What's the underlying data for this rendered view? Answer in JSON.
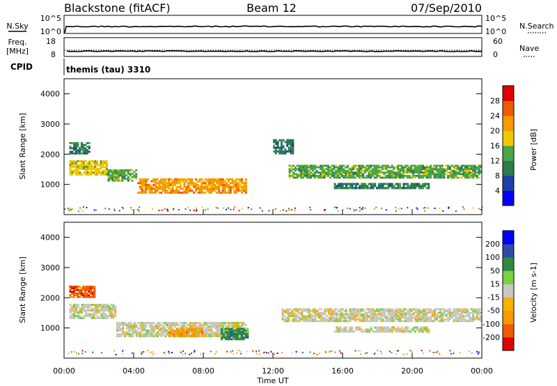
{
  "header": {
    "title_left": "Blackstone (fitACF)",
    "title_center": "Beam 12",
    "title_right": "07/Sep/2010"
  },
  "top_panels": {
    "nsky_label": "N.Sky",
    "nsky_ticks": [
      "10^5",
      "10^0"
    ],
    "nsearch_label": "N.Search",
    "nsearch_ticks": [
      "10^5",
      "10^0"
    ],
    "freq_label_1": "Freq.",
    "freq_label_2": "[MHz]",
    "freq_ticks": [
      "18",
      "8"
    ],
    "nave_label": "Nave",
    "nave_ticks": [
      "60",
      "0"
    ],
    "cpid_label": "CPID",
    "cpid_value": "themis (tau) 3310"
  },
  "colors": {
    "power_scale": [
      "#0000ff",
      "#1f3fa8",
      "#2f7a4f",
      "#49a548",
      "#f0c800",
      "#f59a00",
      "#f05a00",
      "#e00000"
    ],
    "velocity_scale": [
      "#e00000",
      "#f05a00",
      "#f59a00",
      "#f5b000",
      "#c8c8c0",
      "#7ad040",
      "#2f8a3f",
      "#2f4aa8",
      "#0000ff"
    ]
  },
  "chart_data": [
    {
      "type": "heatmap",
      "ylabel": "Slant Range [km]",
      "xlabel": "Time UT",
      "x_ticks": [
        "00:00",
        "04:00",
        "08:00",
        "12:00",
        "16:00",
        "20:00",
        "00:00"
      ],
      "y_ticks": [
        "1000",
        "2000",
        "3000",
        "4000"
      ],
      "ylim": [
        0,
        4500
      ],
      "colorbar_label": "Power [dB]",
      "colorbar_ticks": [
        "4",
        "8",
        "12",
        "16",
        "20",
        "24",
        "28"
      ],
      "bands": [
        {
          "t0": 0.3,
          "t1": 2.5,
          "r0": 1300,
          "r1": 1800,
          "level": 4
        },
        {
          "t0": 2.5,
          "t1": 4.2,
          "r0": 1100,
          "r1": 1500,
          "level": 3
        },
        {
          "t0": 4.2,
          "t1": 10.5,
          "r0": 700,
          "r1": 1200,
          "level": 5
        },
        {
          "t0": 12.9,
          "t1": 24.0,
          "r0": 1200,
          "r1": 1650,
          "level": 3
        },
        {
          "t0": 15.5,
          "t1": 21.0,
          "r0": 850,
          "r1": 1050,
          "level": 2
        },
        {
          "t0": 0.3,
          "t1": 1.5,
          "r0": 2000,
          "r1": 2400,
          "level": 2
        },
        {
          "t0": 12.0,
          "t1": 13.2,
          "r0": 2000,
          "r1": 2500,
          "level": 2
        }
      ]
    },
    {
      "type": "heatmap",
      "ylabel": "Slant Range [km]",
      "xlabel": "Time UT",
      "x_ticks": [
        "00:00",
        "04:00",
        "08:00",
        "12:00",
        "16:00",
        "20:00",
        "00:00"
      ],
      "y_ticks": [
        "1000",
        "2000",
        "3000",
        "4000"
      ],
      "ylim": [
        0,
        4500
      ],
      "colorbar_label": "Velocity [m s-1]",
      "colorbar_ticks": [
        "200",
        "100",
        "50",
        "15",
        "-15",
        "-50",
        "-100",
        "-200"
      ],
      "bands": [
        {
          "t0": 0.3,
          "t1": 1.8,
          "r0": 2000,
          "r1": 2400,
          "level": 1
        },
        {
          "t0": 0.3,
          "t1": 3.0,
          "r0": 1300,
          "r1": 1800,
          "level": 4
        },
        {
          "t0": 3.0,
          "t1": 10.5,
          "r0": 700,
          "r1": 1200,
          "level": 4
        },
        {
          "t0": 6.0,
          "t1": 8.0,
          "r0": 700,
          "r1": 1000,
          "level": 2
        },
        {
          "t0": 9.0,
          "t1": 10.6,
          "r0": 600,
          "r1": 1000,
          "level": 6
        },
        {
          "t0": 12.5,
          "t1": 24.0,
          "r0": 1200,
          "r1": 1650,
          "level": 4
        },
        {
          "t0": 15.5,
          "t1": 21.0,
          "r0": 850,
          "r1": 1050,
          "level": 4
        }
      ]
    }
  ]
}
